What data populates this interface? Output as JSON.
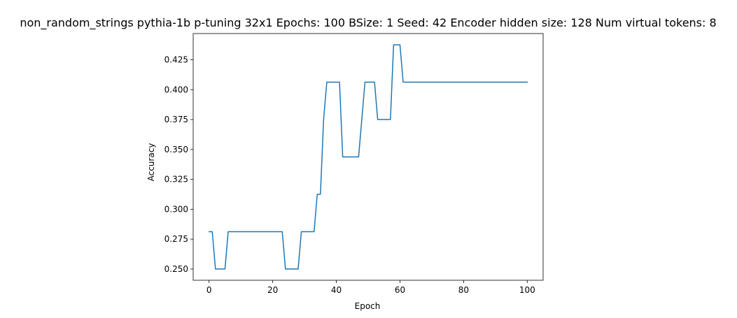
{
  "chart_data": {
    "type": "line",
    "title": "non_random_strings pythia-1b p-tuning 32x1 Epochs: 100 BSize: 1 Seed: 42 Encoder hidden size: 128 Num virtual tokens: 8",
    "xlabel": "Epoch",
    "ylabel": "Accuracy",
    "xlim": [
      -5,
      105
    ],
    "ylim": [
      0.2406,
      0.4469
    ],
    "xticks": [
      0,
      20,
      40,
      60,
      80,
      100
    ],
    "yticks": [
      0.25,
      0.275,
      0.3,
      0.325,
      0.35,
      0.375,
      0.4,
      0.425
    ],
    "ytick_labels": [
      "0.250",
      "0.275",
      "0.300",
      "0.325",
      "0.350",
      "0.375",
      "0.400",
      "0.425"
    ],
    "grid": false,
    "series": [
      {
        "color": "#1f77b4",
        "x": [
          0,
          1,
          2,
          3,
          4,
          5,
          6,
          7,
          8,
          9,
          10,
          11,
          12,
          13,
          14,
          15,
          16,
          17,
          18,
          19,
          20,
          21,
          22,
          23,
          24,
          25,
          26,
          27,
          28,
          29,
          30,
          31,
          32,
          33,
          34,
          35,
          36,
          37,
          38,
          39,
          40,
          41,
          42,
          43,
          44,
          45,
          46,
          47,
          48,
          49,
          50,
          51,
          52,
          53,
          54,
          55,
          56,
          57,
          58,
          59,
          60,
          61,
          62,
          63,
          64,
          65,
          66,
          67,
          68,
          69,
          70,
          71,
          72,
          73,
          74,
          75,
          76,
          77,
          78,
          79,
          80,
          81,
          82,
          83,
          84,
          85,
          86,
          87,
          88,
          89,
          90,
          91,
          92,
          93,
          94,
          95,
          96,
          97,
          98,
          99,
          100
        ],
        "y": [
          0.28125,
          0.28125,
          0.25,
          0.25,
          0.25,
          0.25,
          0.28125,
          0.28125,
          0.28125,
          0.28125,
          0.28125,
          0.28125,
          0.28125,
          0.28125,
          0.28125,
          0.28125,
          0.28125,
          0.28125,
          0.28125,
          0.28125,
          0.28125,
          0.28125,
          0.28125,
          0.28125,
          0.25,
          0.25,
          0.25,
          0.25,
          0.25,
          0.28125,
          0.28125,
          0.28125,
          0.28125,
          0.28125,
          0.3125,
          0.3125,
          0.375,
          0.40625,
          0.40625,
          0.40625,
          0.40625,
          0.40625,
          0.34375,
          0.34375,
          0.34375,
          0.34375,
          0.34375,
          0.34375,
          0.375,
          0.40625,
          0.40625,
          0.40625,
          0.40625,
          0.375,
          0.375,
          0.375,
          0.375,
          0.375,
          0.4375,
          0.4375,
          0.4375,
          0.40625,
          0.40625,
          0.40625,
          0.40625,
          0.40625,
          0.40625,
          0.40625,
          0.40625,
          0.40625,
          0.40625,
          0.40625,
          0.40625,
          0.40625,
          0.40625,
          0.40625,
          0.40625,
          0.40625,
          0.40625,
          0.40625,
          0.40625,
          0.40625,
          0.40625,
          0.40625,
          0.40625,
          0.40625,
          0.40625,
          0.40625,
          0.40625,
          0.40625,
          0.40625,
          0.40625,
          0.40625,
          0.40625,
          0.40625,
          0.40625,
          0.40625,
          0.40625,
          0.40625,
          0.40625,
          0.40625
        ]
      }
    ]
  }
}
